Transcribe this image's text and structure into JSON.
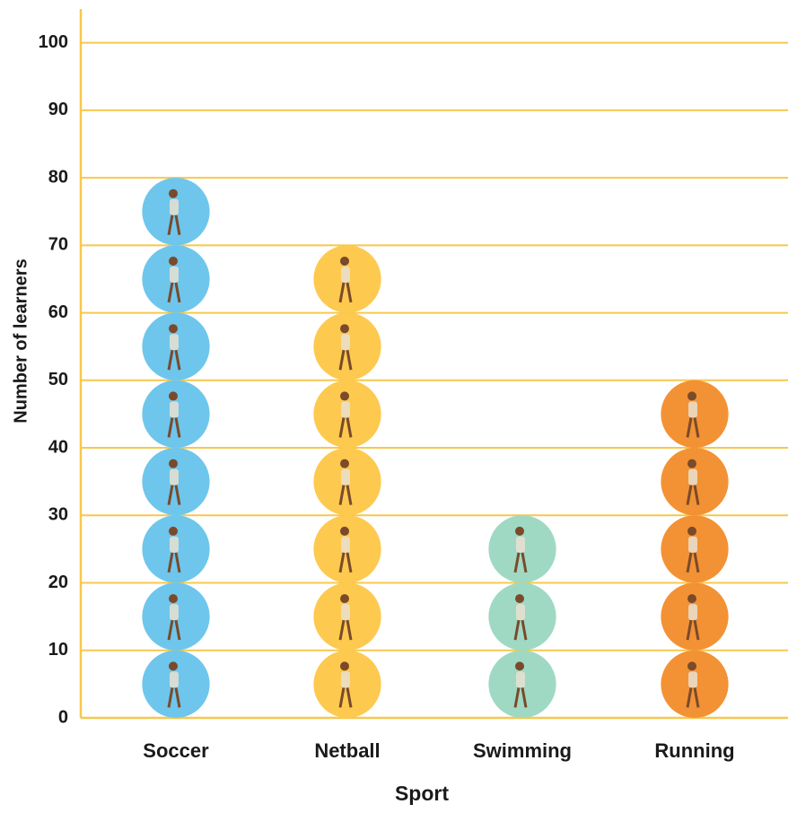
{
  "chart_data": {
    "type": "pictograph",
    "x_label": "Sport",
    "y_label": "Number of learners",
    "categories": [
      "Soccer",
      "Netball",
      "Swimming",
      "Running"
    ],
    "values": [
      80,
      70,
      30,
      50
    ],
    "colors": [
      "#6ec6ec",
      "#fdc94f",
      "#9fd9c4",
      "#f39234"
    ],
    "ylim": [
      0,
      105
    ],
    "yticks": [
      0,
      10,
      20,
      30,
      40,
      50,
      60,
      70,
      80,
      90,
      100
    ],
    "grid": true,
    "grid_color": "#f6c84c"
  }
}
